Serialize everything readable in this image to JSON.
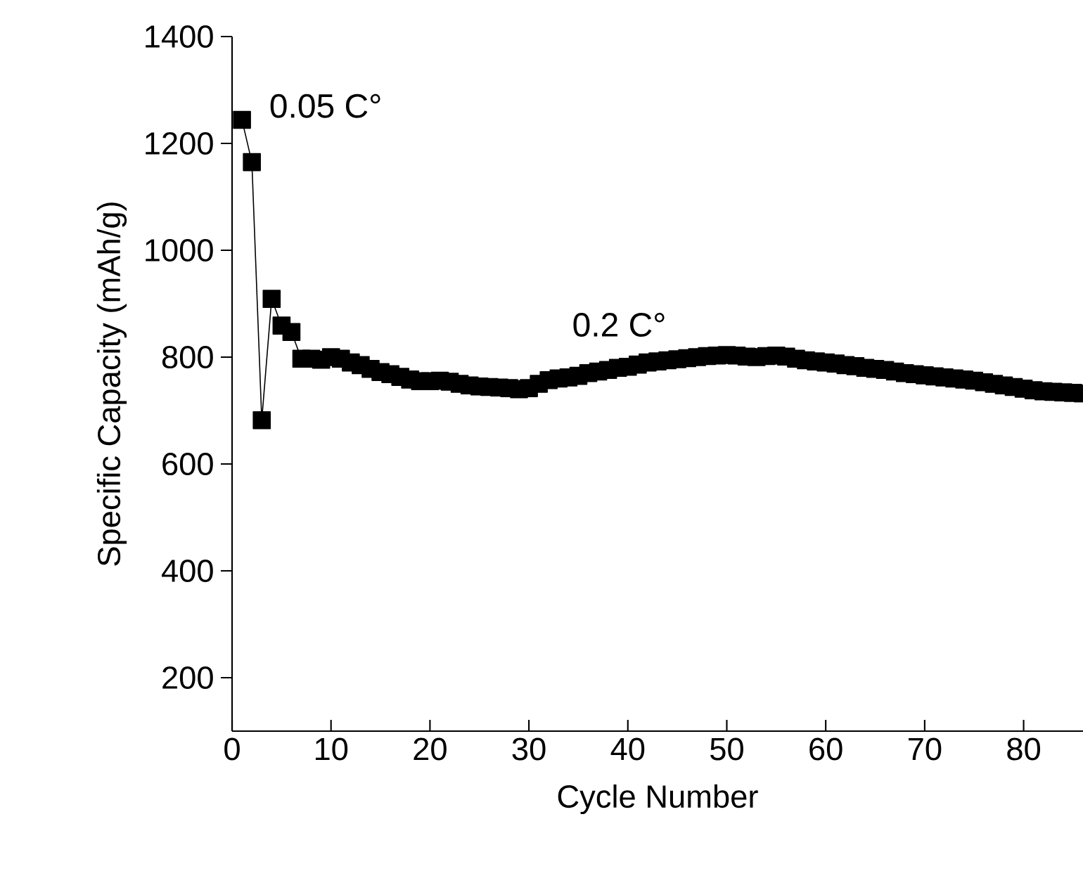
{
  "chart_data": {
    "type": "line",
    "xlabel": "Cycle Number",
    "ylabel": "Specific Capacity (mAh/g)",
    "x": [
      1,
      2,
      3,
      4,
      5,
      6,
      7,
      8,
      9,
      10,
      11,
      12,
      13,
      14,
      15,
      16,
      17,
      18,
      19,
      20,
      21,
      22,
      23,
      24,
      25,
      26,
      27,
      28,
      29,
      30,
      31,
      32,
      33,
      34,
      35,
      36,
      37,
      38,
      39,
      40,
      41,
      42,
      43,
      44,
      45,
      46,
      47,
      48,
      49,
      50,
      51,
      52,
      53,
      54,
      55,
      56,
      57,
      58,
      59,
      60,
      61,
      62,
      63,
      64,
      65,
      66,
      67,
      68,
      69,
      70,
      71,
      72,
      73,
      74,
      75,
      76,
      77,
      78,
      79,
      80,
      81,
      82,
      83,
      84,
      85,
      86
    ],
    "series": [
      {
        "color": "#000000",
        "values": [
          1244,
          1165,
          682,
          909,
          859,
          847,
          797,
          797,
          795,
          800,
          797,
          790,
          785,
          778,
          772,
          768,
          763,
          758,
          755,
          755,
          756,
          754,
          750,
          747,
          745,
          744,
          743,
          742,
          740,
          742,
          750,
          757,
          760,
          762,
          765,
          770,
          773,
          776,
          780,
          782,
          786,
          790,
          792,
          794,
          796,
          798,
          800,
          802,
          803,
          804,
          803,
          801,
          800,
          802,
          803,
          801,
          797,
          794,
          792,
          790,
          788,
          785,
          783,
          780,
          778,
          776,
          773,
          770,
          768,
          766,
          764,
          762,
          760,
          758,
          756,
          753,
          750,
          747,
          744,
          741,
          738,
          736,
          735,
          734,
          733,
          732
        ]
      }
    ],
    "xlim": [
      0,
      86
    ],
    "ylim": [
      100,
      1400
    ],
    "xticks": [
      0,
      10,
      20,
      30,
      40,
      50,
      60,
      70,
      80
    ],
    "yticks": [
      200,
      400,
      600,
      800,
      1000,
      1200,
      1400
    ],
    "marker": "square",
    "line_style": "solid",
    "annotations": [
      "0.05 C°",
      "0.2 C°"
    ]
  }
}
